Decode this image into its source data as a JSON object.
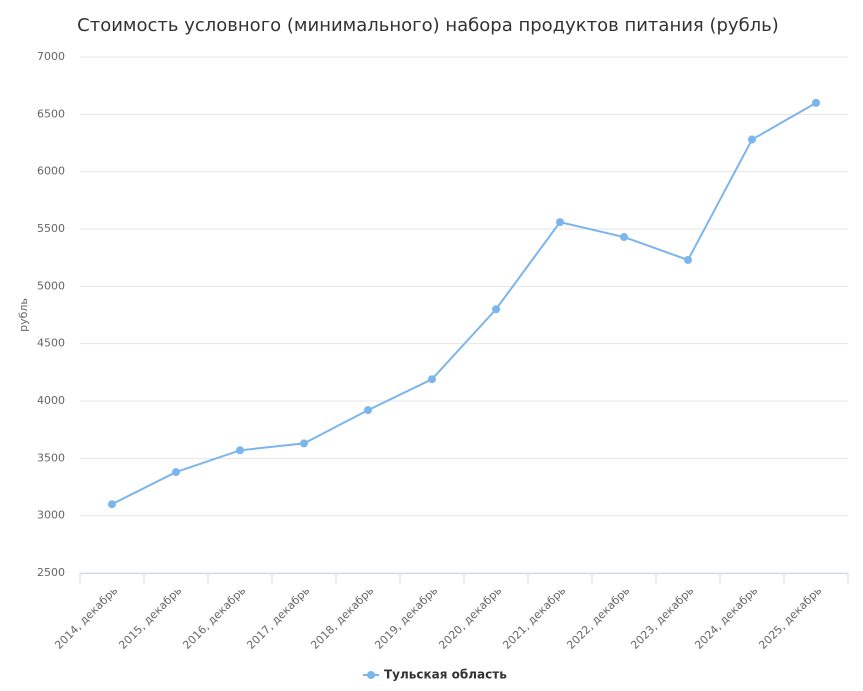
{
  "chart_data": {
    "type": "line",
    "title": "Стоимость условного (минимального) набора продуктов питания (рубль)",
    "y_label": "рубль",
    "categories": [
      "2014, декабрь",
      "2015, декабрь",
      "2016, декабрь",
      "2017, декабрь",
      "2018, декабрь",
      "2019, декабрь",
      "2020, декабрь",
      "2021, декабрь",
      "2022, декабрь",
      "2023, декабрь",
      "2024, декабрь",
      "2025, декабрь"
    ],
    "series": [
      {
        "name": "Тульская область",
        "color": "#7cb5ec",
        "values": [
          3100,
          3380,
          3570,
          3630,
          3920,
          4190,
          4800,
          5560,
          5430,
          5230,
          6280,
          6600
        ]
      }
    ],
    "ylim": [
      2500,
      7000
    ],
    "yticks": [
      2500,
      3000,
      3500,
      4000,
      4500,
      5000,
      5500,
      6000,
      6500,
      7000
    ],
    "grid": true
  }
}
